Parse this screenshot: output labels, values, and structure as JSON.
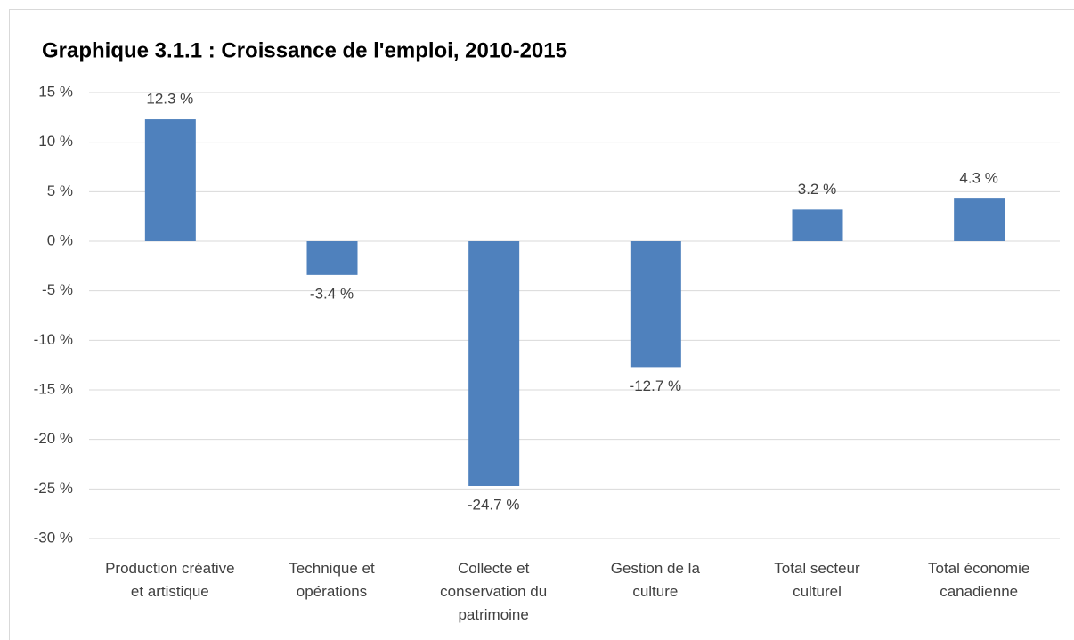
{
  "chart_data": {
    "type": "bar",
    "title": "Graphique 3.1.1 : Croissance de l'emploi, 2010-2015",
    "categories": [
      "Production créative et artistique",
      "Technique et opérations",
      "Collecte et conservation du patrimoine",
      "Gestion de la culture",
      "Total secteur culturel",
      "Total économie canadienne"
    ],
    "values": [
      12.3,
      -3.4,
      -24.7,
      -12.7,
      3.2,
      4.3
    ],
    "value_labels": [
      "12.3 %",
      "-3.4 %",
      "-24.7 %",
      "-12.7 %",
      "3.2 %",
      "4.3 %"
    ],
    "color": "#4f81bd",
    "ylim": [
      -30,
      15
    ],
    "yticks": [
      {
        "value": -30,
        "label": "-30 %"
      },
      {
        "value": -25,
        "label": "-25 %"
      },
      {
        "value": -20,
        "label": "-20 %"
      },
      {
        "value": -15,
        "label": "-15 %"
      },
      {
        "value": -10,
        "label": "-10 %"
      },
      {
        "value": -5,
        "label": "-5 %"
      },
      {
        "value": 0,
        "label": "0 %"
      },
      {
        "value": 5,
        "label": "5 %"
      },
      {
        "value": 10,
        "label": "10 %"
      },
      {
        "value": 15,
        "label": "15 %"
      }
    ],
    "grid": true
  }
}
